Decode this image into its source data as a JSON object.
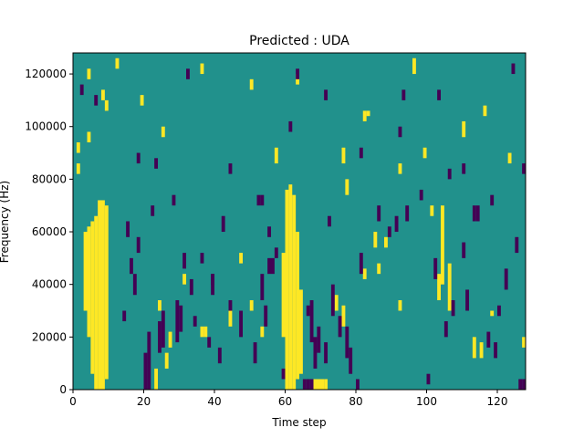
{
  "chart_data": {
    "type": "heatmap",
    "title": "Predicted : UDA",
    "xlabel": "Time step",
    "ylabel": "Frequency (Hz)",
    "xlim": [
      0,
      128
    ],
    "ylim": [
      0,
      128000
    ],
    "x_ticks": [
      0,
      20,
      40,
      60,
      80,
      100,
      120
    ],
    "y_ticks": [
      0,
      20000,
      40000,
      60000,
      80000,
      100000,
      120000
    ],
    "x_tick_labels": [
      "0",
      "20",
      "40",
      "60",
      "80",
      "100",
      "120"
    ],
    "y_tick_labels": [
      "0",
      "20000",
      "40000",
      "60000",
      "80000",
      "100000",
      "120000"
    ],
    "n_time_steps": 128,
    "n_freq_bins": 64,
    "freq_bin_hz": 2000,
    "grid": false,
    "colors": {
      "background": "#21918c",
      "low": "#440154",
      "high": "#fde725"
    },
    "cell_values": {
      "background": 1,
      "low": 0,
      "high": 2,
      "note": "mask cells listed as [time_start, time_end, freq_start_hz, freq_end_hz]"
    },
    "high_cells": [
      [
        6,
        7,
        0,
        66000
      ],
      [
        7,
        8,
        0,
        72000
      ],
      [
        8,
        9,
        0,
        72000
      ],
      [
        9,
        10,
        4000,
        70000
      ],
      [
        5,
        6,
        6000,
        64000
      ],
      [
        4,
        5,
        20000,
        62000
      ],
      [
        3,
        4,
        30000,
        60000
      ],
      [
        60,
        61,
        0,
        76000
      ],
      [
        61,
        62,
        0,
        78000
      ],
      [
        62,
        63,
        0,
        74000
      ],
      [
        63,
        64,
        4000,
        60000
      ],
      [
        64,
        65,
        6000,
        38000
      ],
      [
        59,
        60,
        20000,
        52000
      ],
      [
        68,
        71,
        0,
        4000
      ],
      [
        71,
        72,
        0,
        4000
      ],
      [
        36,
        37,
        20000,
        24000
      ],
      [
        37,
        38,
        20000,
        24000
      ],
      [
        27,
        28,
        16000,
        22000
      ],
      [
        104,
        105,
        40000,
        70000
      ],
      [
        103,
        104,
        34000,
        44000
      ],
      [
        106,
        107,
        30000,
        48000
      ],
      [
        115,
        116,
        12000,
        18000
      ],
      [
        127,
        128,
        16000,
        20000
      ],
      [
        113,
        114,
        12000,
        20000
      ],
      [
        23,
        24,
        0,
        8000
      ],
      [
        26,
        27,
        8000,
        14000
      ],
      [
        44,
        45,
        24000,
        30000
      ],
      [
        50,
        51,
        30000,
        34000
      ],
      [
        74,
        75,
        30000,
        36000
      ],
      [
        76,
        77,
        24000,
        32000
      ],
      [
        86,
        87,
        44000,
        48000
      ],
      [
        92,
        93,
        30000,
        34000
      ],
      [
        118,
        119,
        28000,
        30000
      ],
      [
        77,
        78,
        74000,
        80000
      ],
      [
        76,
        77,
        86000,
        92000
      ],
      [
        82,
        83,
        102000,
        106000
      ],
      [
        92,
        93,
        82000,
        86000
      ],
      [
        99,
        100,
        88000,
        92000
      ],
      [
        116,
        117,
        104000,
        108000
      ],
      [
        110,
        111,
        96000,
        102000
      ],
      [
        4,
        5,
        118000,
        122000
      ],
      [
        8,
        9,
        110000,
        114000
      ],
      [
        19,
        20,
        108000,
        112000
      ],
      [
        25,
        26,
        96000,
        100000
      ],
      [
        36,
        37,
        120000,
        124000
      ],
      [
        50,
        51,
        114000,
        118000
      ],
      [
        57,
        58,
        86000,
        92000
      ],
      [
        63,
        64,
        116000,
        120000
      ],
      [
        82,
        83,
        42000,
        46000
      ],
      [
        88,
        89,
        54000,
        58000
      ],
      [
        96,
        97,
        120000,
        126000
      ],
      [
        101,
        102,
        66000,
        70000
      ],
      [
        1,
        2,
        90000,
        94000
      ],
      [
        12,
        13,
        122000,
        126000
      ],
      [
        24,
        25,
        30000,
        34000
      ],
      [
        31,
        32,
        40000,
        44000
      ],
      [
        47,
        48,
        48000,
        52000
      ],
      [
        53,
        54,
        20000,
        24000
      ],
      [
        83,
        84,
        104000,
        106000
      ],
      [
        85,
        86,
        54000,
        60000
      ],
      [
        123,
        124,
        86000,
        90000
      ],
      [
        1,
        2,
        82000,
        86000
      ],
      [
        4,
        5,
        94000,
        98000
      ],
      [
        9,
        10,
        106000,
        110000
      ]
    ],
    "low_cells": [
      [
        20,
        21,
        0,
        14000
      ],
      [
        21,
        22,
        0,
        22000
      ],
      [
        24,
        25,
        14000,
        26000
      ],
      [
        25,
        26,
        16000,
        30000
      ],
      [
        29,
        30,
        18000,
        34000
      ],
      [
        30,
        31,
        22000,
        32000
      ],
      [
        34,
        35,
        24000,
        28000
      ],
      [
        38,
        39,
        16000,
        20000
      ],
      [
        41,
        42,
        10000,
        16000
      ],
      [
        44,
        45,
        30000,
        34000
      ],
      [
        47,
        48,
        20000,
        30000
      ],
      [
        51,
        52,
        10000,
        18000
      ],
      [
        53,
        54,
        34000,
        44000
      ],
      [
        54,
        55,
        24000,
        32000
      ],
      [
        55,
        56,
        44000,
        50000
      ],
      [
        56,
        57,
        44000,
        50000
      ],
      [
        66,
        67,
        28000,
        32000
      ],
      [
        67,
        68,
        18000,
        34000
      ],
      [
        68,
        69,
        8000,
        20000
      ],
      [
        69,
        70,
        14000,
        24000
      ],
      [
        71,
        72,
        10000,
        18000
      ],
      [
        73,
        74,
        28000,
        40000
      ],
      [
        75,
        76,
        20000,
        28000
      ],
      [
        77,
        78,
        12000,
        24000
      ],
      [
        78,
        79,
        6000,
        16000
      ],
      [
        65,
        66,
        0,
        4000
      ],
      [
        66,
        67,
        0,
        4000
      ],
      [
        67,
        68,
        0,
        4000
      ],
      [
        80,
        81,
        0,
        4000
      ],
      [
        81,
        82,
        44000,
        52000
      ],
      [
        86,
        87,
        64000,
        70000
      ],
      [
        91,
        92,
        60000,
        66000
      ],
      [
        94,
        95,
        64000,
        70000
      ],
      [
        102,
        103,
        42000,
        50000
      ],
      [
        105,
        106,
        20000,
        26000
      ],
      [
        107,
        108,
        28000,
        34000
      ],
      [
        110,
        111,
        50000,
        56000
      ],
      [
        111,
        112,
        30000,
        38000
      ],
      [
        114,
        115,
        64000,
        70000
      ],
      [
        117,
        118,
        16000,
        22000
      ],
      [
        119,
        120,
        12000,
        18000
      ],
      [
        122,
        123,
        38000,
        46000
      ],
      [
        125,
        126,
        52000,
        58000
      ],
      [
        127,
        128,
        0,
        4000
      ],
      [
        126,
        127,
        0,
        4000
      ],
      [
        16,
        17,
        44000,
        50000
      ],
      [
        17,
        18,
        36000,
        44000
      ],
      [
        15,
        16,
        58000,
        64000
      ],
      [
        18,
        19,
        52000,
        58000
      ],
      [
        22,
        23,
        66000,
        70000
      ],
      [
        31,
        32,
        46000,
        52000
      ],
      [
        33,
        34,
        36000,
        42000
      ],
      [
        39,
        40,
        40000,
        44000
      ],
      [
        53,
        54,
        70000,
        74000
      ],
      [
        55,
        56,
        58000,
        62000
      ],
      [
        72,
        73,
        62000,
        66000
      ],
      [
        81,
        82,
        88000,
        92000
      ],
      [
        92,
        93,
        96000,
        100000
      ],
      [
        106,
        107,
        80000,
        84000
      ],
      [
        113,
        114,
        64000,
        70000
      ],
      [
        118,
        119,
        70000,
        74000
      ],
      [
        127,
        128,
        82000,
        86000
      ],
      [
        18,
        19,
        86000,
        90000
      ],
      [
        32,
        33,
        118000,
        122000
      ],
      [
        39,
        40,
        36000,
        44000
      ],
      [
        44,
        45,
        82000,
        86000
      ],
      [
        52,
        53,
        70000,
        74000
      ],
      [
        61,
        62,
        98000,
        102000
      ],
      [
        71,
        72,
        110000,
        114000
      ],
      [
        89,
        90,
        58000,
        62000
      ],
      [
        98,
        99,
        72000,
        76000
      ],
      [
        103,
        104,
        110000,
        114000
      ],
      [
        110,
        111,
        82000,
        86000
      ],
      [
        120,
        121,
        28000,
        32000
      ],
      [
        124,
        125,
        120000,
        124000
      ],
      [
        2,
        3,
        112000,
        116000
      ],
      [
        6,
        7,
        108000,
        112000
      ],
      [
        14,
        15,
        26000,
        30000
      ],
      [
        23,
        24,
        84000,
        88000
      ],
      [
        28,
        29,
        70000,
        74000
      ],
      [
        36,
        37,
        48000,
        52000
      ],
      [
        42,
        43,
        60000,
        66000
      ],
      [
        57,
        58,
        50000,
        54000
      ],
      [
        59,
        60,
        4000,
        8000
      ],
      [
        63,
        64,
        118000,
        122000
      ],
      [
        93,
        94,
        110000,
        114000
      ],
      [
        100,
        101,
        2000,
        6000
      ]
    ]
  }
}
